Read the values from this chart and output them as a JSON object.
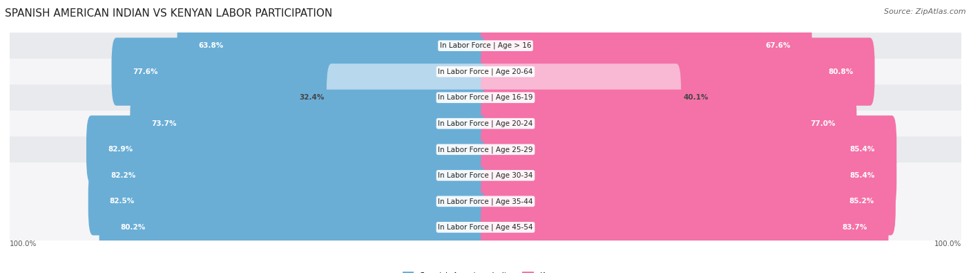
{
  "title": "SPANISH AMERICAN INDIAN VS KENYAN LABOR PARTICIPATION",
  "source": "Source: ZipAtlas.com",
  "categories": [
    "In Labor Force | Age > 16",
    "In Labor Force | Age 20-64",
    "In Labor Force | Age 16-19",
    "In Labor Force | Age 20-24",
    "In Labor Force | Age 25-29",
    "In Labor Force | Age 30-34",
    "In Labor Force | Age 35-44",
    "In Labor Force | Age 45-54"
  ],
  "spanish_values": [
    63.8,
    77.6,
    32.4,
    73.7,
    82.9,
    82.2,
    82.5,
    80.2
  ],
  "kenyan_values": [
    67.6,
    80.8,
    40.1,
    77.0,
    85.4,
    85.4,
    85.2,
    83.7
  ],
  "spanish_color": "#6aaed6",
  "kenyan_color": "#f472a8",
  "spanish_color_light": "#b8d8ed",
  "kenyan_color_light": "#f9b8d4",
  "row_bg_even": "#e8eaed",
  "row_bg_odd": "#f5f5f7",
  "max_value": 100.0,
  "legend_spanish": "Spanish American Indian",
  "legend_kenyan": "Kenyan",
  "title_fontsize": 11,
  "source_fontsize": 8,
  "label_fontsize": 7.5,
  "value_fontsize": 7.5,
  "axis_label_fontsize": 7.5,
  "bar_height": 0.62,
  "background_color": "#ffffff",
  "light_threshold": 50
}
